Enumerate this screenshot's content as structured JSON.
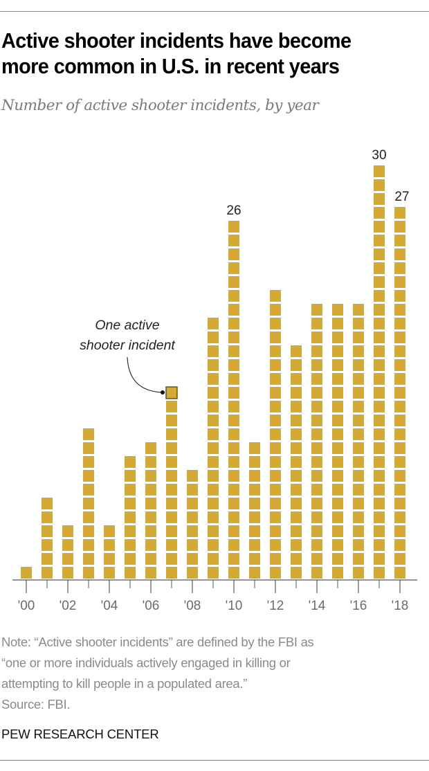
{
  "chart_data": {
    "type": "bar",
    "style": "unit-square stacks",
    "title": "Active shooter incidents have become more common in U.S. in recent years",
    "subtitle": "Number of active shooter incidents, by year",
    "xlabel": "",
    "ylabel": "",
    "categories": [
      "2000",
      "2001",
      "2002",
      "2003",
      "2004",
      "2005",
      "2006",
      "2007",
      "2008",
      "2009",
      "2010",
      "2011",
      "2012",
      "2013",
      "2014",
      "2015",
      "2016",
      "2017",
      "2018"
    ],
    "values": [
      1,
      6,
      4,
      11,
      4,
      9,
      10,
      14,
      8,
      19,
      26,
      10,
      21,
      17,
      20,
      20,
      20,
      30,
      27
    ],
    "tick_labels": [
      "'00",
      "'02",
      "'04",
      "'06",
      "'08",
      "'10",
      "'12",
      "'14",
      "'16",
      "'18"
    ],
    "data_labels": [
      {
        "category": "2010",
        "text": "26"
      },
      {
        "category": "2017",
        "text": "30"
      },
      {
        "category": "2018",
        "text": "27"
      }
    ],
    "annotation": {
      "category": "2007",
      "lines": [
        "One active",
        "shooter incident"
      ]
    },
    "grid": false,
    "legend": "none"
  },
  "colors": {
    "bar": "#d4aa36",
    "highlight_stroke": "#4a3f1e",
    "axis": "#555555",
    "tick_label": "#6b6b6b"
  },
  "note": {
    "lines": [
      "Note: “Active shooter incidents” are defined by the FBI as",
      "“one or more individuals actively engaged in killing or",
      "attempting to kill people in a populated area.”",
      "Source: FBI."
    ]
  },
  "brand": "PEW RESEARCH CENTER"
}
